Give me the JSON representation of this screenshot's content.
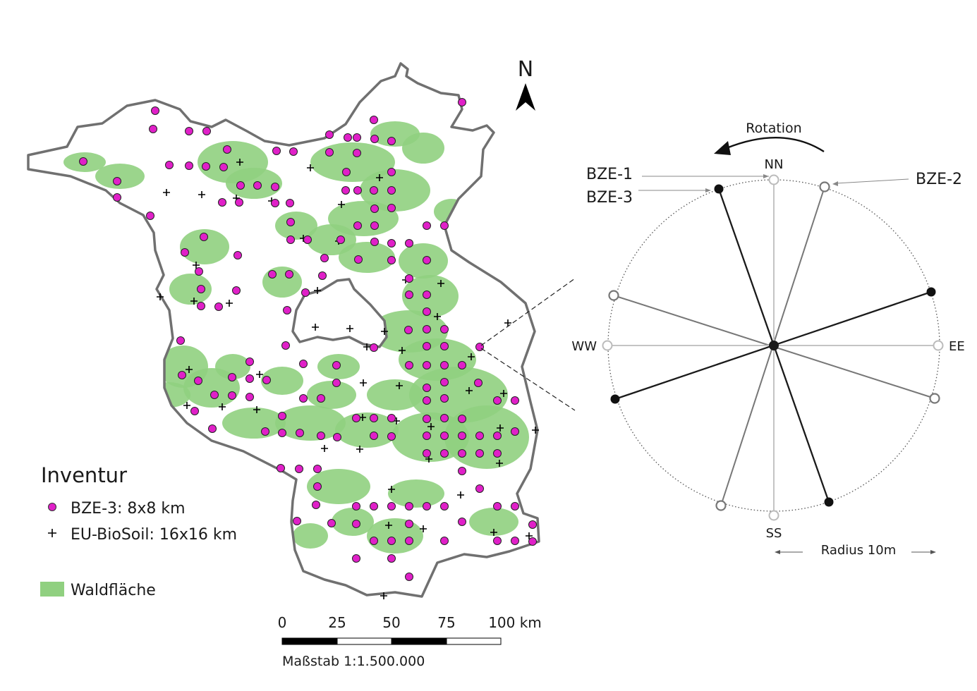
{
  "north_arrow": {
    "label": "N"
  },
  "legend": {
    "title": "Inventur",
    "items": [
      {
        "symbol": "dot",
        "label": "BZE-3: 8x8 km",
        "color": "#e020c8"
      },
      {
        "symbol": "plus",
        "label": "EU-BioSoil: 16x16 km",
        "color": "#000000"
      },
      {
        "symbol": "patch",
        "label": "Waldfläche",
        "color": "#90d080"
      }
    ]
  },
  "scalebar": {
    "ticks": [
      "0",
      "25",
      "50",
      "75",
      "100 km"
    ],
    "caption": "Maßstab 1:1.500.000"
  },
  "colors": {
    "forest": "#90d080",
    "bze3": "#e020c8",
    "boundary": "#707070"
  },
  "plot_design": {
    "rotation_label": "Rotation",
    "directions": {
      "north": "NN",
      "east": "EE",
      "south": "SS",
      "west": "WW"
    },
    "callouts": {
      "bze1": "BZE-1",
      "bze3": "BZE-3",
      "bze2": "BZE-2"
    },
    "radius_label": "Radius 10m"
  }
}
